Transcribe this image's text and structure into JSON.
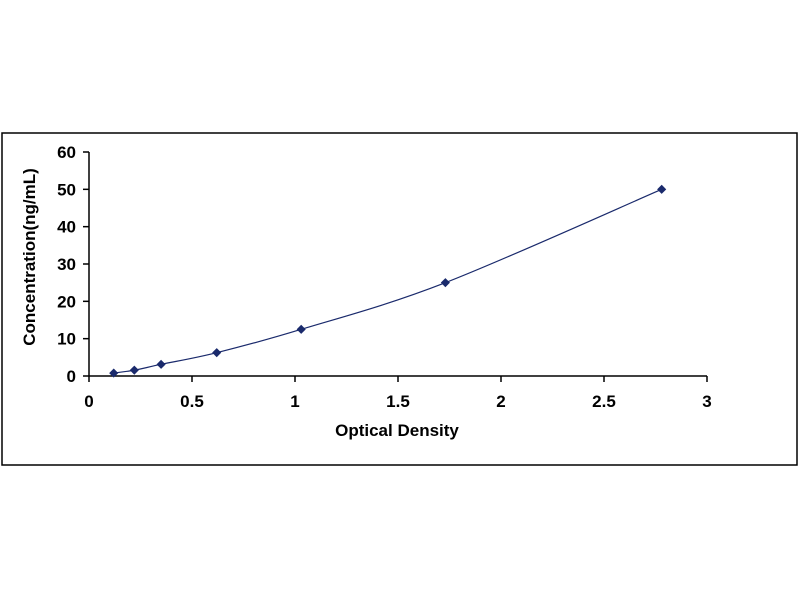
{
  "chart_data": {
    "type": "scatter",
    "title": "",
    "xlabel": "Optical Density",
    "ylabel": "Concentration(ng/mL)",
    "xlim": [
      0,
      3
    ],
    "ylim": [
      0,
      60
    ],
    "xticks": [
      0,
      0.5,
      1,
      1.5,
      2,
      2.5,
      3
    ],
    "yticks": [
      0,
      10,
      20,
      30,
      40,
      50,
      60
    ],
    "xtick_labels": [
      "0",
      "0.5",
      "1",
      "1.5",
      "2",
      "2.5",
      "3"
    ],
    "ytick_labels": [
      "0",
      "10",
      "20",
      "30",
      "40",
      "50",
      "60"
    ],
    "grid": false,
    "legend": "none",
    "fit_curve": "smooth",
    "series": [
      {
        "x": [
          0.12,
          0.22,
          0.35,
          0.62,
          1.03,
          1.73,
          2.78
        ],
        "y": [
          0.78,
          1.56,
          3.12,
          6.25,
          12.5,
          25,
          50
        ],
        "marker": "diamond",
        "color": "#1a2a6c",
        "line_color": "#1a2a6c"
      }
    ]
  }
}
